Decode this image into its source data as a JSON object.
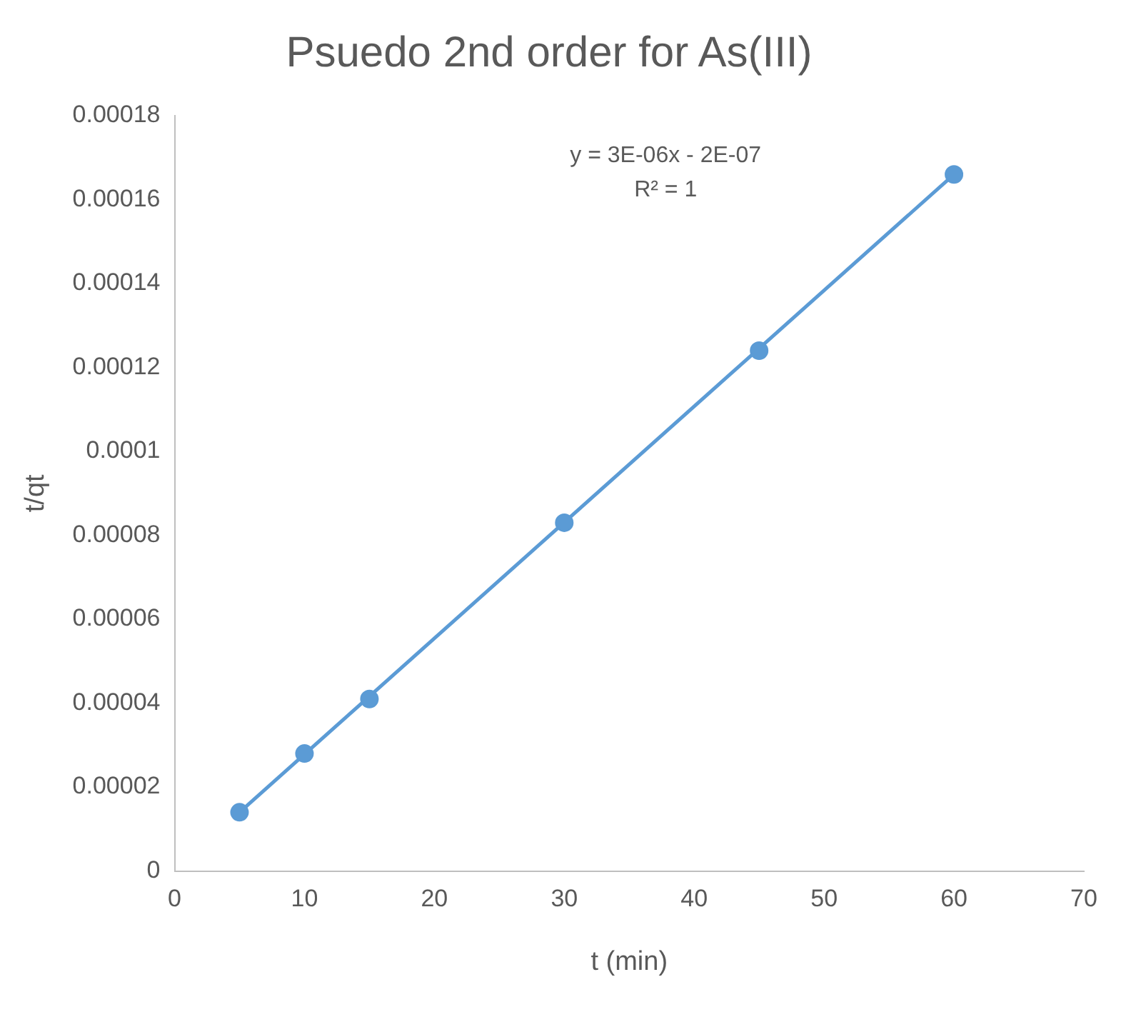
{
  "chart_data": {
    "type": "scatter",
    "title": "Psuedo 2nd order for As(III)",
    "xlabel": "t (min)",
    "ylabel": "t/qt",
    "series": [
      {
        "color": "#5b9bd5",
        "x": [
          5,
          10,
          15,
          30,
          45,
          60
        ],
        "values": [
          1.4e-05,
          2.8e-05,
          4.1e-05,
          8.3e-05,
          0.000124,
          0.000166
        ],
        "marker": "circle"
      },
      {
        "type": "line",
        "color": "#5b9bd5",
        "x": [
          5,
          60
        ],
        "values": [
          1.4e-05,
          0.000166
        ],
        "marker": "none",
        "line_style": "solid"
      }
    ],
    "xlim": [
      0,
      70
    ],
    "xticks": [
      0,
      10,
      20,
      30,
      40,
      50,
      60,
      70
    ],
    "ylim": [
      0,
      0.00018
    ],
    "yticks": [
      0,
      {
        "value": 2e-05,
        "label": "0.00002"
      },
      {
        "value": 4e-05,
        "label": "0.00004"
      },
      {
        "value": 6e-05,
        "label": "0.00006"
      },
      {
        "value": 8e-05,
        "label": "0.00008"
      },
      0.0001,
      0.00012,
      0.00014,
      0.00016,
      0.00018
    ],
    "grid": false,
    "legend": false,
    "annotations": [
      "y = 3E-06x - 2E-07",
      "R² = 1"
    ]
  }
}
